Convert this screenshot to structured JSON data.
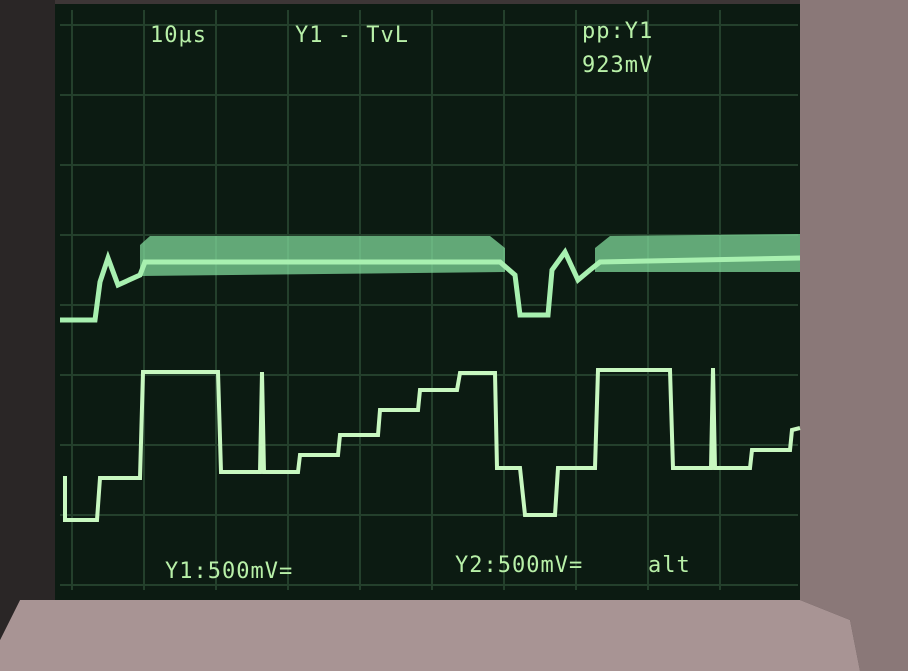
{
  "screen": {
    "readouts": {
      "timebase": "10μs",
      "trigger": "Y1 - TvL",
      "measurement": "pp:Y1",
      "measurement_value": "923mV",
      "channel1": "Y1:500mV=",
      "channel2": "Y2:500mV=",
      "mode": "alt"
    }
  }
}
